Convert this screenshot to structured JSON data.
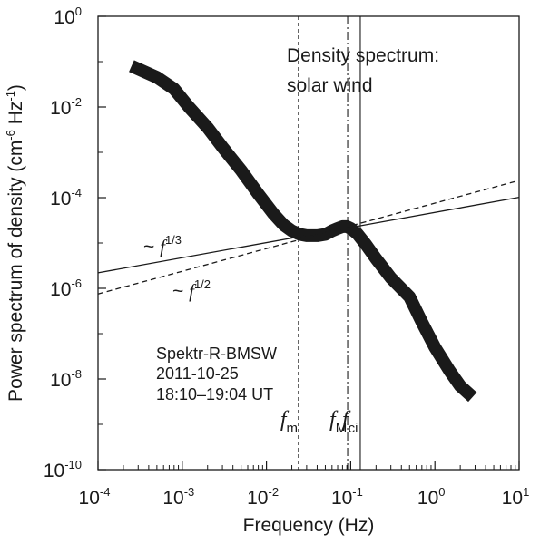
{
  "chart_data": {
    "type": "line",
    "xlabel": "Frequency  (Hz)",
    "ylabel": "Power spectrum of density (cm-6 Hz-1)",
    "ylabel_parts": {
      "main": "Power spectrum of density (cm",
      "exp1": "-6",
      "mid": " Hz",
      "exp2": "-1",
      "end": ")"
    },
    "x_scale": "log",
    "y_scale": "log",
    "xlim": [
      0.0001,
      10
    ],
    "ylim": [
      1e-10,
      1
    ],
    "grid": false,
    "x_ticks": [
      {
        "value": 0.0001,
        "base": "10",
        "exp": "-4"
      },
      {
        "value": 0.001,
        "base": "10",
        "exp": "-3"
      },
      {
        "value": 0.01,
        "base": "10",
        "exp": "-2"
      },
      {
        "value": 0.1,
        "base": "10",
        "exp": "-1"
      },
      {
        "value": 1,
        "base": "10",
        "exp": "0"
      },
      {
        "value": 10,
        "base": "10",
        "exp": "1"
      }
    ],
    "y_ticks": [
      {
        "value": 1e-10,
        "base": "10",
        "exp": "-10"
      },
      {
        "value": 1e-08,
        "base": "10",
        "exp": "-8"
      },
      {
        "value": 1e-06,
        "base": "10",
        "exp": "-6"
      },
      {
        "value": 0.0001,
        "base": "10",
        "exp": "-4"
      },
      {
        "value": 0.01,
        "base": "10",
        "exp": "-2"
      },
      {
        "value": 1,
        "base": "10",
        "exp": "0"
      }
    ],
    "series": [
      {
        "name": "Density spectrum",
        "style": "thick",
        "x": [
          0.00025,
          0.0005,
          0.0008,
          0.0012,
          0.002,
          0.003,
          0.005,
          0.008,
          0.012,
          0.016,
          0.02,
          0.025,
          0.03,
          0.04,
          0.05,
          0.06,
          0.07,
          0.08,
          0.09,
          0.1,
          0.12,
          0.15,
          0.2,
          0.3,
          0.5,
          0.7,
          1.0,
          1.5,
          2.0,
          2.8
        ],
        "y": [
          0.08,
          0.045,
          0.025,
          0.01,
          0.0035,
          0.0013,
          0.0004,
          0.00012,
          4.5e-05,
          2.5e-05,
          1.85e-05,
          1.55e-05,
          1.45e-05,
          1.45e-05,
          1.55e-05,
          1.85e-05,
          2.1e-05,
          2.3e-05,
          2.3e-05,
          2.1e-05,
          1.6e-05,
          9.5e-06,
          4.5e-06,
          1.7e-06,
          6.5e-07,
          1.8e-07,
          5e-08,
          1.5e-08,
          7e-09,
          4e-09
        ]
      },
      {
        "name": "f^1/3 fit",
        "style": "solid",
        "x": [
          0.0001,
          10
        ],
        "y": [
          2.2e-06,
          0.000102
        ]
      },
      {
        "name": "f^1/2 fit",
        "style": "dashed",
        "x": [
          0.0001,
          10
        ],
        "y": [
          7.5e-07,
          0.00024
        ]
      }
    ],
    "vlines": [
      {
        "x": 0.024,
        "style": "dotted",
        "label": "f",
        "sub": "m"
      },
      {
        "x": 0.092,
        "style": "dashdot",
        "label": "f",
        "sub": "M"
      },
      {
        "x": 0.13,
        "style": "solid",
        "label": "f",
        "sub": "ci"
      }
    ],
    "annotations": {
      "title_line1": "Density spectrum:",
      "title_line2": "solar wind",
      "fit1_prefix": "~ ",
      "fit1_base": "f",
      "fit1_exp": "1/3",
      "fit2_prefix": "~ ",
      "fit2_base": "f",
      "fit2_exp": "1/2",
      "info_line1": "Spektr-R-BMSW",
      "info_line2": "2011-10-25",
      "info_line3": "18:10–19:04 UT"
    }
  }
}
